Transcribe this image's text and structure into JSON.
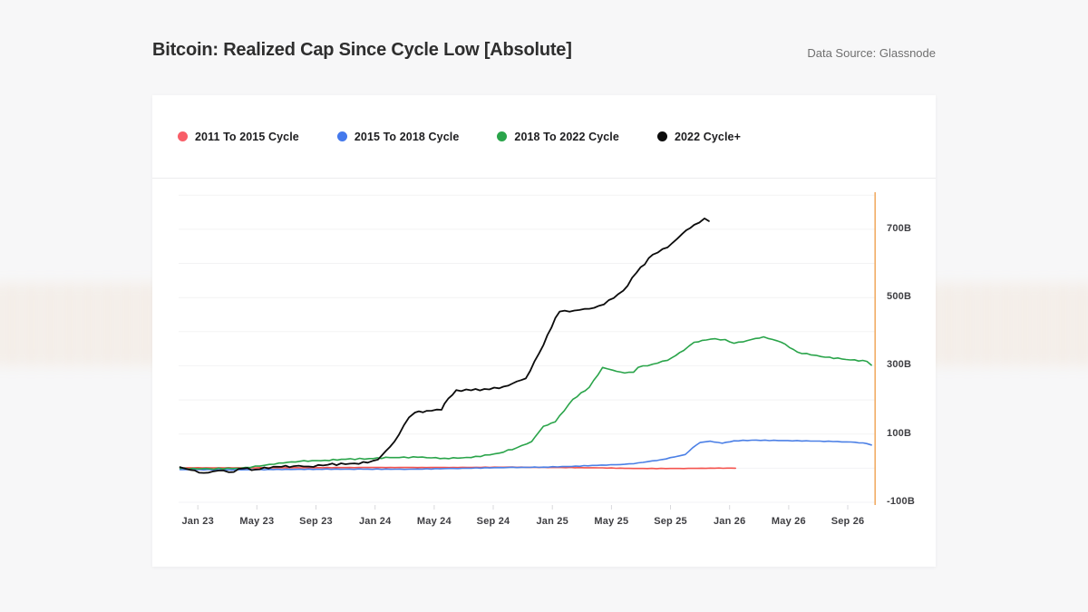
{
  "page": {
    "title": "Bitcoin: Realized Cap Since Cycle Low [Absolute]",
    "data_source": "Data Source: Glassnode"
  },
  "legend": [
    {
      "id": "cycle-2011-2015",
      "label": "2011 To 2015 Cycle",
      "color": "#f85e68"
    },
    {
      "id": "cycle-2015-2018",
      "label": "2015 To 2018 Cycle",
      "color": "#4479ec"
    },
    {
      "id": "cycle-2018-2022",
      "label": "2018 To 2022 Cycle",
      "color": "#2aa44a"
    },
    {
      "id": "cycle-2022-plus",
      "label": "2022 Cycle+",
      "color": "#0c0c0c"
    }
  ],
  "chart_data": {
    "type": "line",
    "title": "Bitcoin: Realized Cap Since Cycle Low [Absolute]",
    "unit": "USD billions (realized cap gained since each cycle low)",
    "xlabel": "",
    "ylabel": "",
    "grid": "horizontal",
    "legend_position": "top",
    "gridline_color": "#f3f3f4",
    "tick_mark_color": "#d9d9dc",
    "axis_line_color": "#f1ad66",
    "x_tick_months": [
      0,
      4,
      8,
      12,
      16,
      20,
      24,
      28,
      32,
      36,
      40,
      44
    ],
    "x_tick_labels": [
      "Jan 23",
      "May 23",
      "Sep 23",
      "Jan 24",
      "May 24",
      "Sep 24",
      "Jan 25",
      "May 25",
      "Sep 25",
      "Jan 26",
      "May 26",
      "Sep 26"
    ],
    "xlim_months": [
      -1.3,
      45.9
    ],
    "y_ticks_B": [
      700,
      500,
      300,
      100,
      -100
    ],
    "y_tick_labels": [
      "700B",
      "500B",
      "300B",
      "100B",
      "-100B"
    ],
    "ylim_B": [
      -108,
      814
    ],
    "series": [
      {
        "id": "cycle-2011-2015",
        "name": "2011 To 2015 Cycle",
        "color": "#f4534e",
        "width": 1.6,
        "jitter": 0.15,
        "points": [
          [
            -1.2,
            1
          ],
          [
            5.1,
            1
          ],
          [
            11.2,
            2
          ],
          [
            17.3,
            2
          ],
          [
            21.0,
            3
          ],
          [
            24.6,
            2
          ],
          [
            27.1,
            1
          ],
          [
            29.5,
            -1
          ],
          [
            32.6,
            -1
          ],
          [
            35.0,
            0
          ],
          [
            36.4,
            0
          ]
        ]
      },
      {
        "id": "cycle-2015-2018",
        "name": "2015 To 2018 Cycle",
        "color": "#4c80e6",
        "width": 1.6,
        "jitter": 0.25,
        "points": [
          [
            -1.2,
            -4
          ],
          [
            2.0,
            -5
          ],
          [
            5.1,
            -4
          ],
          [
            8.1,
            -3
          ],
          [
            11.2,
            -3
          ],
          [
            14.3,
            -3
          ],
          [
            17.3,
            -1
          ],
          [
            21.0,
            2
          ],
          [
            23.4,
            3
          ],
          [
            25.3,
            5
          ],
          [
            26.7,
            8
          ],
          [
            28.3,
            10
          ],
          [
            29.5,
            13
          ],
          [
            31.4,
            25
          ],
          [
            32.6,
            36
          ],
          [
            33.0,
            40
          ],
          [
            33.5,
            60
          ],
          [
            34.0,
            75
          ],
          [
            34.7,
            79
          ],
          [
            35.5,
            73
          ],
          [
            36.3,
            80
          ],
          [
            37.5,
            82
          ],
          [
            39.3,
            81
          ],
          [
            41.2,
            80
          ],
          [
            43.0,
            78
          ],
          [
            44.5,
            76
          ],
          [
            45.3,
            72
          ],
          [
            45.6,
            68
          ]
        ]
      },
      {
        "id": "cycle-2018-2022",
        "name": "2018 To 2022 Cycle",
        "color": "#2aa44a",
        "width": 1.6,
        "jitter": 0.6,
        "points": [
          [
            -1.2,
            -1
          ],
          [
            0.8,
            -2
          ],
          [
            2.9,
            0
          ],
          [
            4.2,
            6
          ],
          [
            5.5,
            15
          ],
          [
            6.9,
            20
          ],
          [
            8.6,
            23
          ],
          [
            10.0,
            26
          ],
          [
            11.6,
            28
          ],
          [
            13.0,
            31
          ],
          [
            14.9,
            32
          ],
          [
            16.7,
            29
          ],
          [
            18.5,
            31
          ],
          [
            20.4,
            44
          ],
          [
            21.6,
            60
          ],
          [
            22.6,
            78
          ],
          [
            23.4,
            123
          ],
          [
            24.2,
            136
          ],
          [
            25.4,
            202
          ],
          [
            26.5,
            237
          ],
          [
            27.4,
            295
          ],
          [
            28.1,
            287
          ],
          [
            28.9,
            279
          ],
          [
            29.5,
            281
          ],
          [
            29.8,
            295
          ],
          [
            30.8,
            305
          ],
          [
            31.8,
            316
          ],
          [
            32.9,
            345
          ],
          [
            33.6,
            369
          ],
          [
            34.7,
            378
          ],
          [
            35.7,
            377
          ],
          [
            36.3,
            366
          ],
          [
            37.2,
            374
          ],
          [
            38.3,
            385
          ],
          [
            39.5,
            369
          ],
          [
            40.6,
            340
          ],
          [
            41.5,
            332
          ],
          [
            42.2,
            327
          ],
          [
            43.6,
            320
          ],
          [
            45.3,
            313
          ],
          [
            45.6,
            302
          ]
        ]
      },
      {
        "id": "cycle-2022-plus",
        "name": "2022 Cycle+",
        "color": "#0c0c0c",
        "width": 1.8,
        "jitter": 1.1,
        "points": [
          [
            -1.2,
            3
          ],
          [
            -0.8,
            -2
          ],
          [
            0.4,
            -14
          ],
          [
            1.4,
            -7
          ],
          [
            2.1,
            -12
          ],
          [
            3.1,
            -1
          ],
          [
            3.9,
            -4
          ],
          [
            5.1,
            4
          ],
          [
            6.5,
            6
          ],
          [
            7.5,
            5
          ],
          [
            8.8,
            10
          ],
          [
            10.6,
            14
          ],
          [
            11.5,
            16
          ],
          [
            12.2,
            25
          ],
          [
            13.0,
            62
          ],
          [
            13.6,
            97
          ],
          [
            14.3,
            149
          ],
          [
            14.7,
            163
          ],
          [
            15.5,
            168
          ],
          [
            16.5,
            171
          ],
          [
            16.7,
            189
          ],
          [
            17.5,
            229
          ],
          [
            18.5,
            228
          ],
          [
            19.4,
            232
          ],
          [
            20.4,
            234
          ],
          [
            21.3,
            248
          ],
          [
            22.2,
            263
          ],
          [
            23.4,
            361
          ],
          [
            24.2,
            440
          ],
          [
            24.5,
            459
          ],
          [
            25.5,
            462
          ],
          [
            26.5,
            467
          ],
          [
            27.5,
            480
          ],
          [
            28.8,
            520
          ],
          [
            29.7,
            573
          ],
          [
            30.8,
            626
          ],
          [
            31.8,
            647
          ],
          [
            32.8,
            687
          ],
          [
            33.6,
            713
          ],
          [
            34.3,
            732
          ],
          [
            34.6,
            724
          ]
        ]
      }
    ]
  }
}
